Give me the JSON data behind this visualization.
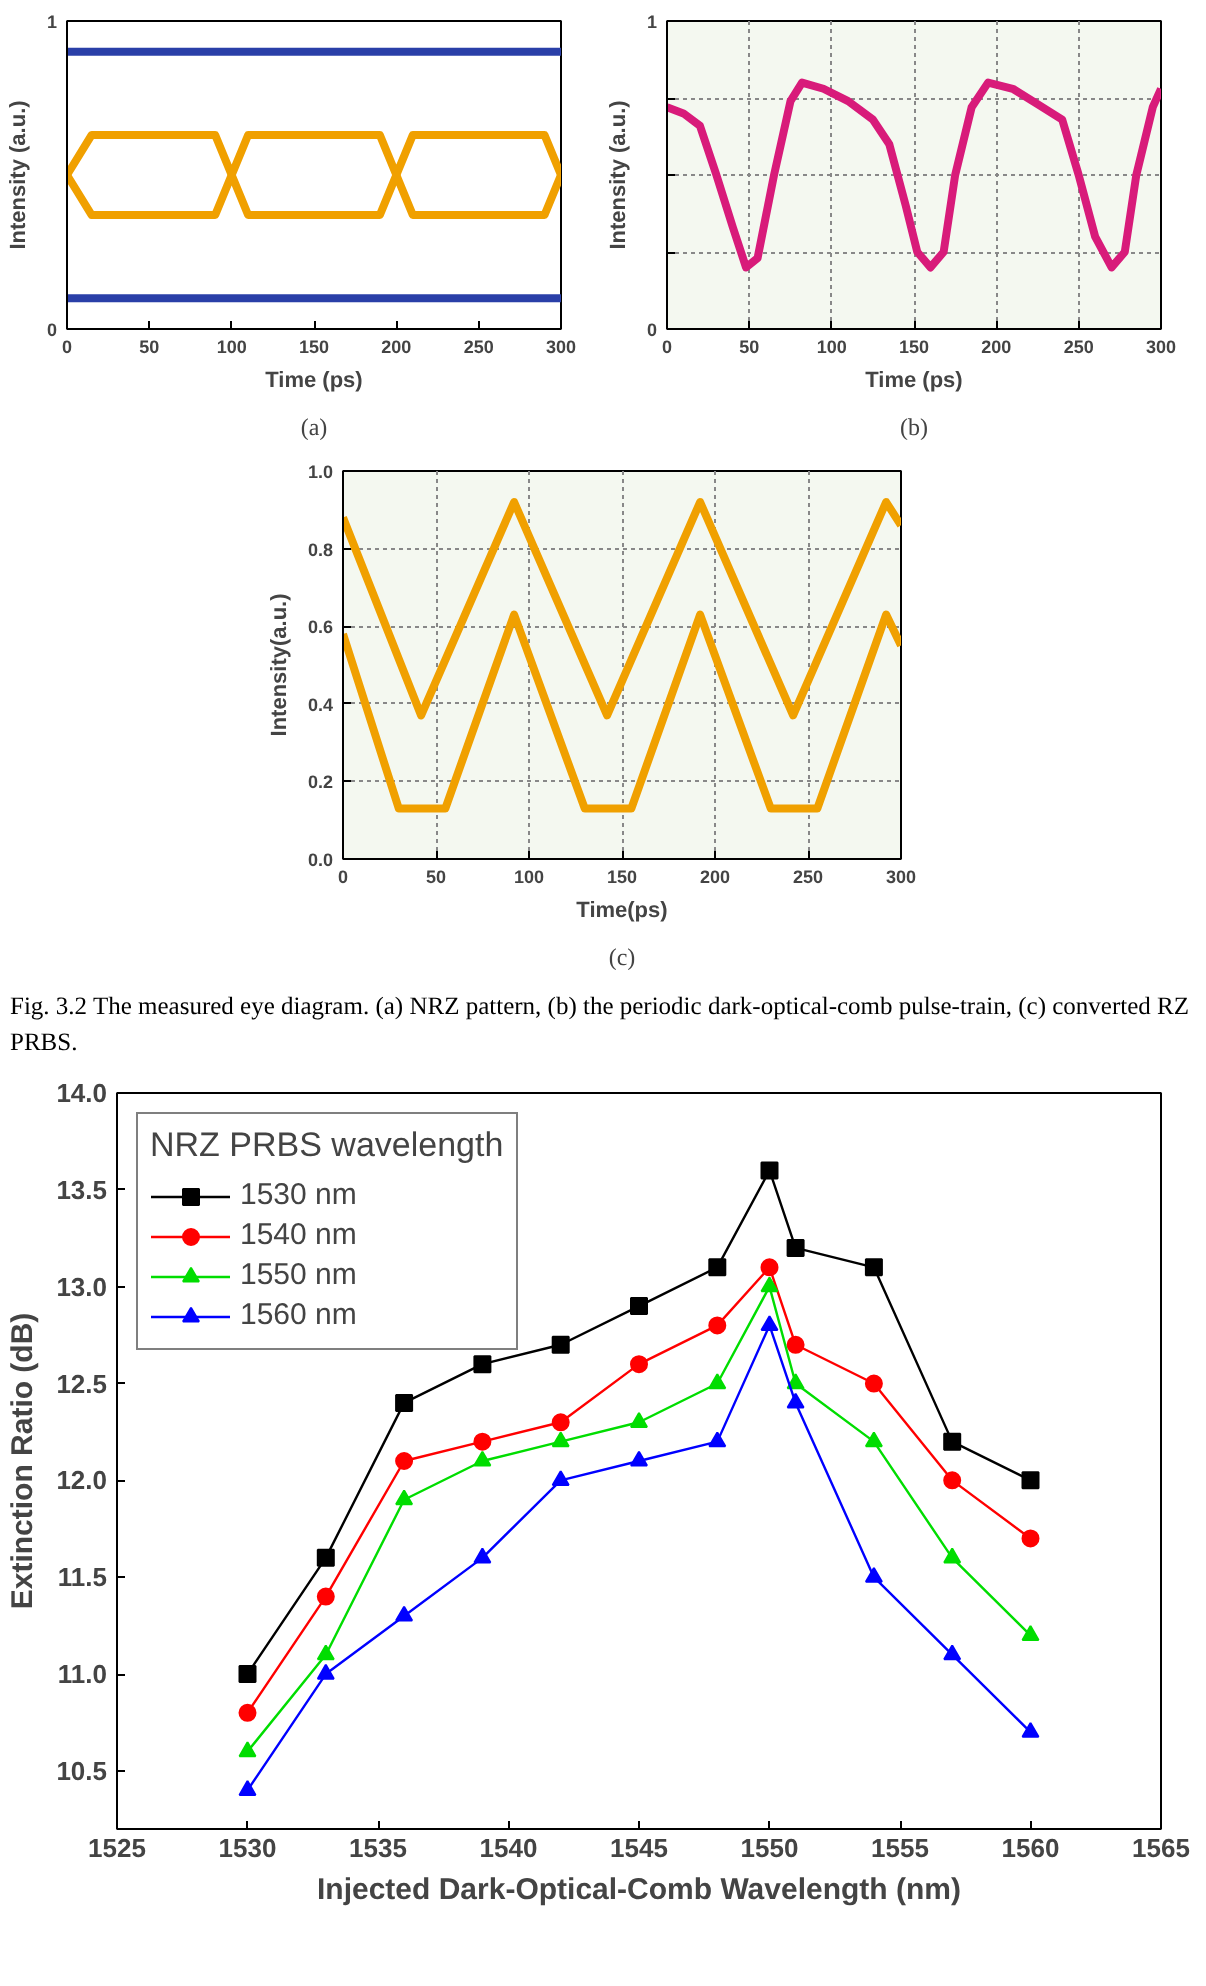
{
  "chart_data": [
    {
      "type": "line",
      "xlabel": "Time (ps)",
      "ylabel": "Intensity (a.u.)",
      "x": [
        0,
        15,
        90,
        100,
        110,
        190,
        200,
        210,
        290,
        300
      ],
      "xlim": [
        0,
        300
      ],
      "xticks": [
        0,
        50,
        100,
        150,
        200,
        250,
        300
      ],
      "ylim": [
        0,
        1
      ],
      "yticks": [
        0,
        1
      ],
      "grid": false,
      "legend": false,
      "annotations": [
        "(a)"
      ],
      "series": [
        {
          "color": "#2a3fa8",
          "x": [
            0,
            300
          ],
          "values": [
            0.9,
            0.9
          ]
        },
        {
          "color": "#f0a000",
          "values": [
            0.5,
            0.63,
            0.63,
            0.5,
            0.63,
            0.63,
            0.5,
            0.63,
            0.63,
            0.5
          ]
        },
        {
          "color": "#f0a000",
          "values": [
            0.5,
            0.37,
            0.37,
            0.5,
            0.37,
            0.37,
            0.5,
            0.37,
            0.37,
            0.5
          ]
        },
        {
          "color": "#2a3fa8",
          "x": [
            0,
            300
          ],
          "values": [
            0.1,
            0.1
          ]
        }
      ]
    },
    {
      "type": "line",
      "xlabel": "Time (ps)",
      "ylabel": "Intensity (a.u.)",
      "xlim": [
        0,
        300
      ],
      "xticks": [
        0,
        50,
        100,
        150,
        200,
        250,
        300
      ],
      "ylim": [
        0,
        1
      ],
      "yticks": [
        0,
        {
          "value": 0.25,
          "label": null
        },
        {
          "value": 0.5,
          "label": null
        },
        {
          "value": 0.75,
          "label": null
        },
        1
      ],
      "grid": true,
      "legend": false,
      "annotations": [
        "(b)"
      ],
      "x": [
        0,
        10,
        20,
        30,
        40,
        48,
        55,
        65,
        75,
        82,
        95,
        110,
        125,
        135,
        145,
        152,
        160,
        168,
        175,
        185,
        195,
        210,
        225,
        240,
        250,
        260,
        270,
        278,
        285,
        295,
        300
      ],
      "series": [
        {
          "color": "#d81b7a",
          "values": [
            0.72,
            0.7,
            0.66,
            0.5,
            0.33,
            0.2,
            0.23,
            0.5,
            0.74,
            0.8,
            0.78,
            0.74,
            0.68,
            0.6,
            0.4,
            0.25,
            0.2,
            0.25,
            0.5,
            0.72,
            0.8,
            0.78,
            0.73,
            0.68,
            0.5,
            0.3,
            0.2,
            0.25,
            0.5,
            0.72,
            0.78
          ]
        }
      ]
    },
    {
      "type": "line",
      "xlabel": "Time(ps)",
      "ylabel": "Intensity(a.u.)",
      "xlim": [
        0,
        300
      ],
      "xticks": [
        0,
        50,
        100,
        150,
        200,
        250,
        300
      ],
      "ylim": [
        0,
        1
      ],
      "yticks": [
        {
          "value": 0,
          "label": "0.0"
        },
        0.2,
        0.4,
        0.6,
        0.8,
        {
          "value": 1,
          "label": "1.0"
        }
      ],
      "grid": true,
      "legend": false,
      "annotations": [
        "(c)",
        "Fig. 3.2 The measured eye diagram. (a) NRZ pattern, (b) the periodic dark-optical-comb pulse-train, (c) converted RZ PRBS."
      ],
      "series": [
        {
          "color": "#f0a000",
          "x": [
            0,
            42,
            92,
            142,
            192,
            242,
            292,
            300
          ],
          "values": [
            0.88,
            0.37,
            0.92,
            0.37,
            0.92,
            0.37,
            0.92,
            0.86
          ]
        },
        {
          "color": "#f0a000",
          "x": [
            0,
            30,
            55,
            92,
            130,
            155,
            192,
            230,
            255,
            292,
            300
          ],
          "values": [
            0.58,
            0.13,
            0.13,
            0.63,
            0.13,
            0.13,
            0.63,
            0.13,
            0.13,
            0.63,
            0.55
          ]
        }
      ]
    },
    {
      "type": "line",
      "xlabel": "Injected Dark-Optical-Comb Wavelength (nm)",
      "ylabel": "Extinction Ratio (dB)",
      "legend_title": "NRZ PRBS wavelength",
      "legend": "top left",
      "grid": false,
      "x": [
        1530,
        1533,
        1536,
        1539,
        1542,
        1545,
        1548,
        1550,
        1551,
        1554,
        1557,
        1560
      ],
      "xlim": [
        1525,
        1565
      ],
      "xticks": [
        1525,
        1530,
        1535,
        1540,
        1545,
        1550,
        1555,
        1560,
        1565
      ],
      "ylim": [
        10.2,
        14.0
      ],
      "yticks": [
        10.5,
        {
          "value": 11,
          "label": "11.0"
        },
        11.5,
        {
          "value": 12,
          "label": "12.0"
        },
        12.5,
        {
          "value": 13,
          "label": "13.0"
        },
        13.5,
        {
          "value": 14,
          "label": "14.0"
        }
      ],
      "series": [
        {
          "name": "1530 nm",
          "color": "#000000",
          "marker": "square",
          "values": [
            11.0,
            11.6,
            12.4,
            12.6,
            12.7,
            12.9,
            13.1,
            13.6,
            13.2,
            13.1,
            12.2,
            12.0
          ]
        },
        {
          "name": "1540 nm",
          "color": "#ff0000",
          "marker": "circle",
          "values": [
            10.8,
            11.4,
            12.1,
            12.2,
            12.3,
            12.6,
            12.8,
            13.1,
            12.7,
            12.5,
            12.0,
            11.7
          ]
        },
        {
          "name": "1550 nm",
          "color": "#00dd00",
          "marker": "triangle",
          "values": [
            10.6,
            11.1,
            11.9,
            12.1,
            12.2,
            12.3,
            12.5,
            13.0,
            12.5,
            12.2,
            11.6,
            11.2
          ]
        },
        {
          "name": "1560 nm",
          "color": "#0000ff",
          "marker": "triangle",
          "values": [
            10.4,
            11.0,
            11.3,
            11.6,
            12.0,
            12.1,
            12.2,
            12.8,
            12.4,
            11.5,
            11.1,
            10.7
          ]
        }
      ]
    }
  ]
}
